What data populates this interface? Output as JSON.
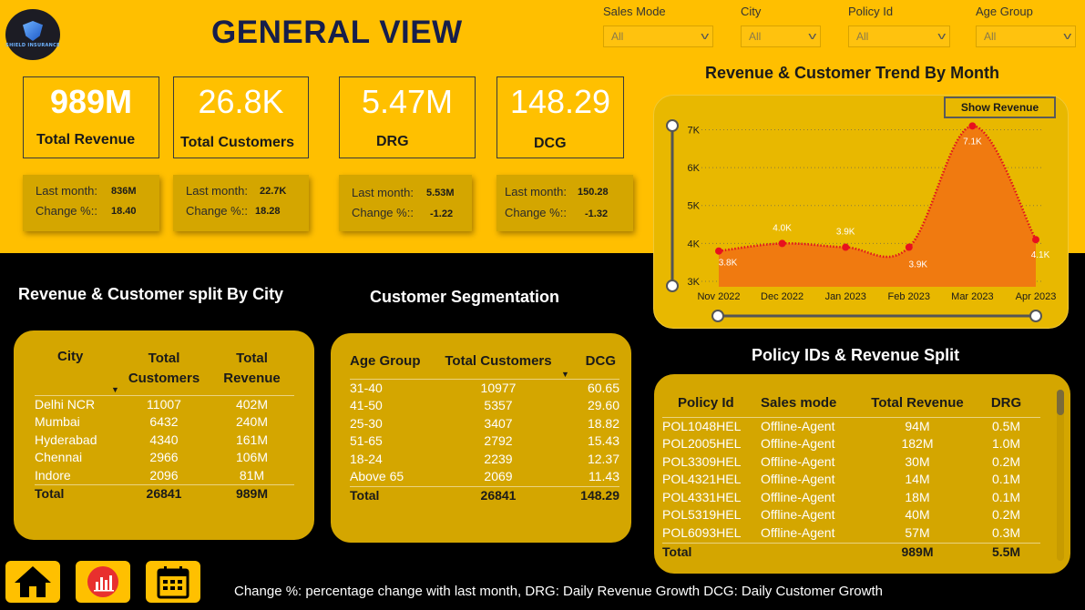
{
  "header": {
    "title": "GENERAL VIEW",
    "logo_text": "SHIELD INSURANCE"
  },
  "filters": [
    {
      "label": "Sales Mode",
      "value": "All"
    },
    {
      "label": "City",
      "value": "All"
    },
    {
      "label": "Policy Id",
      "value": "All"
    },
    {
      "label": "Age Group",
      "value": "All"
    }
  ],
  "kpis": [
    {
      "value": "989M",
      "label": "Total Revenue",
      "last_month_label": "Last month:",
      "last_month": "836M",
      "change_label": "Change %::",
      "change": "18.40"
    },
    {
      "value": "26.8K",
      "label": "Total Customers",
      "last_month_label": "Last month:",
      "last_month": "22.7K",
      "change_label": "Change %::",
      "change": "18.28"
    },
    {
      "value": "5.47M",
      "label": "DRG",
      "last_month_label": "Last month:",
      "last_month": "5.53M",
      "change_label": "Change %::",
      "change": "-1.22"
    },
    {
      "value": "148.29",
      "label": "DCG",
      "last_month_label": "Last month:",
      "last_month": "150.28",
      "change_label": "Change %::",
      "change": "-1.32"
    }
  ],
  "city_split": {
    "title": "Revenue & Customer split By City",
    "headers": [
      "City",
      "Total Customers",
      "Total Revenue"
    ],
    "rows": [
      [
        "Delhi NCR",
        "11007",
        "402M"
      ],
      [
        "Mumbai",
        "6432",
        "240M"
      ],
      [
        "Hyderabad",
        "4340",
        "161M"
      ],
      [
        "Chennai",
        "2966",
        "106M"
      ],
      [
        "Indore",
        "2096",
        "81M"
      ]
    ],
    "total": [
      "Total",
      "26841",
      "989M"
    ]
  },
  "segmentation": {
    "title": "Customer Segmentation",
    "headers": [
      "Age Group",
      "Total Customers",
      "DCG"
    ],
    "rows": [
      [
        "31-40",
        "10977",
        "60.65"
      ],
      [
        "41-50",
        "5357",
        "29.60"
      ],
      [
        "25-30",
        "3407",
        "18.82"
      ],
      [
        "51-65",
        "2792",
        "15.43"
      ],
      [
        "18-24",
        "2239",
        "12.37"
      ],
      [
        "Above 65",
        "2069",
        "11.43"
      ]
    ],
    "total": [
      "Total",
      "26841",
      "148.29"
    ]
  },
  "policy_split": {
    "title": "Policy IDs & Revenue Split",
    "headers": [
      "Policy Id",
      "Sales mode",
      "Total Revenue",
      "DRG"
    ],
    "rows": [
      [
        "POL1048HEL",
        "Offline-Agent",
        "94M",
        "0.5M"
      ],
      [
        "POL2005HEL",
        "Offline-Agent",
        "182M",
        "1.0M"
      ],
      [
        "POL3309HEL",
        "Offline-Agent",
        "30M",
        "0.2M"
      ],
      [
        "POL4321HEL",
        "Offline-Agent",
        "14M",
        "0.1M"
      ],
      [
        "POL4331HEL",
        "Offline-Agent",
        "18M",
        "0.1M"
      ],
      [
        "POL5319HEL",
        "Offline-Agent",
        "40M",
        "0.2M"
      ],
      [
        "POL6093HEL",
        "Offline-Agent",
        "57M",
        "0.3M"
      ]
    ],
    "total": [
      "Total",
      "",
      "989M",
      "5.5M"
    ]
  },
  "trend": {
    "title": "Revenue & Customer Trend By Month",
    "button_label": "Show Revenue"
  },
  "chart_data": {
    "type": "area",
    "title": "Revenue & Customer Trend By Month",
    "categories": [
      "Nov 2022",
      "Dec 2022",
      "Jan 2023",
      "Feb 2023",
      "Mar 2023",
      "Apr 2023"
    ],
    "series": [
      {
        "values": [
          3800,
          4000,
          3900,
          3900,
          7100,
          4100
        ]
      }
    ],
    "data_labels": [
      "3.8K",
      "4.0K",
      "3.9K",
      "3.9K",
      "7.1K",
      "4.1K"
    ],
    "y_ticks": [
      "3K",
      "4K",
      "5K",
      "6K",
      "7K"
    ],
    "ylim": [
      3000,
      7300
    ],
    "grid": true,
    "colors": {
      "fill": "#F07A10",
      "line": "#E0121E",
      "point": "#E8101E"
    }
  },
  "footer": {
    "note": "Change %: percentage change with last month, DRG: Daily Revenue Growth  DCG: Daily Customer Growth"
  },
  "nav": [
    {
      "icon": "home-icon"
    },
    {
      "icon": "bar-chart-icon"
    },
    {
      "icon": "calendar-icon"
    }
  ],
  "colors": {
    "accent": "#FFBF00",
    "card": "#D4A600",
    "title": "#161E4B"
  }
}
